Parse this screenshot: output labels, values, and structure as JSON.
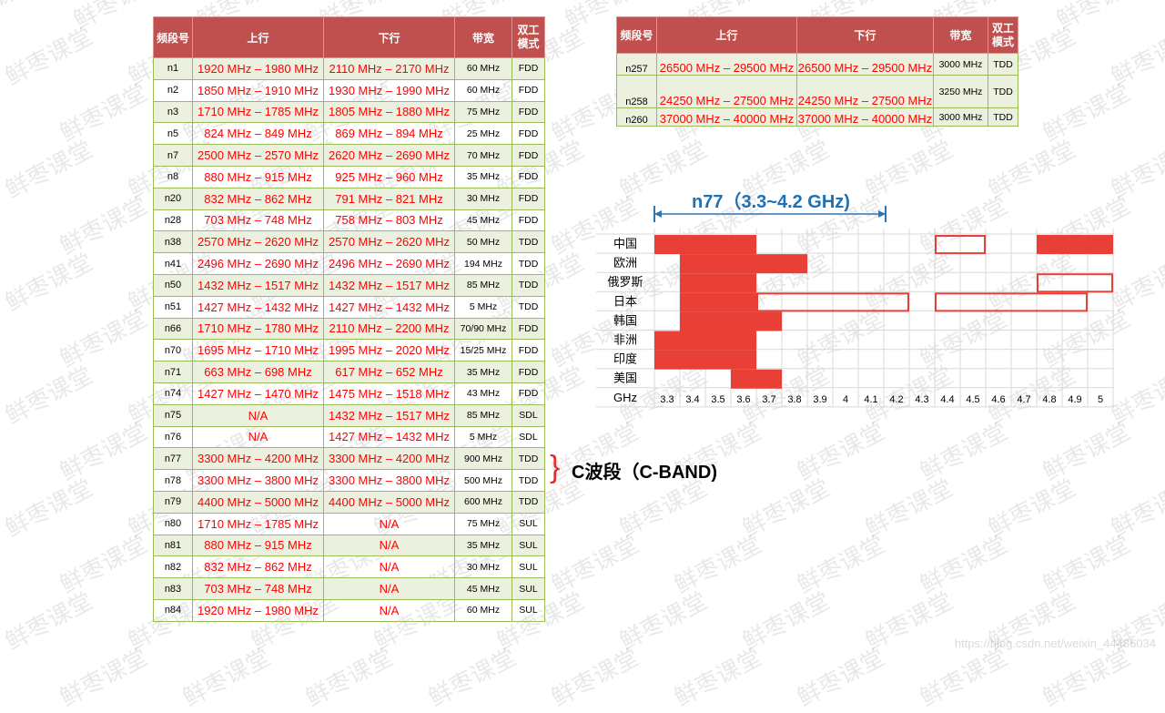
{
  "left_table": {
    "headers": [
      "频段号",
      "上行",
      "下行",
      "带宽",
      "双工模式"
    ],
    "rows": [
      [
        "n1",
        "1920 MHz – 1980 MHz",
        "2110 MHz – 2170 MHz",
        "60 MHz",
        "FDD"
      ],
      [
        "n2",
        "1850 MHz – 1910 MHz",
        "1930 MHz – 1990 MHz",
        "60 MHz",
        "FDD"
      ],
      [
        "n3",
        "1710 MHz – 1785 MHz",
        "1805 MHz – 1880 MHz",
        "75 MHz",
        "FDD"
      ],
      [
        "n5",
        "824 MHz – 849 MHz",
        "869 MHz – 894 MHz",
        "25 MHz",
        "FDD"
      ],
      [
        "n7",
        "2500 MHz – 2570 MHz",
        "2620 MHz – 2690 MHz",
        "70 MHz",
        "FDD"
      ],
      [
        "n8",
        "880 MHz – 915 MHz",
        "925 MHz – 960 MHz",
        "35 MHz",
        "FDD"
      ],
      [
        "n20",
        "832 MHz – 862 MHz",
        "791 MHz – 821 MHz",
        "30 MHz",
        "FDD"
      ],
      [
        "n28",
        "703 MHz – 748 MHz",
        "758 MHz – 803 MHz",
        "45 MHz",
        "FDD"
      ],
      [
        "n38",
        "2570 MHz – 2620 MHz",
        "2570 MHz – 2620 MHz",
        "50 MHz",
        "TDD"
      ],
      [
        "n41",
        "2496 MHz – 2690 MHz",
        "2496 MHz – 2690 MHz",
        "194 MHz",
        "TDD"
      ],
      [
        "n50",
        "1432 MHz – 1517 MHz",
        "1432 MHz – 1517 MHz",
        "85 MHz",
        "TDD"
      ],
      [
        "n51",
        "1427 MHz – 1432 MHz",
        "1427 MHz – 1432 MHz",
        "5 MHz",
        "TDD"
      ],
      [
        "n66",
        "1710 MHz – 1780 MHz",
        "2110 MHz – 2200 MHz",
        "70/90 MHz",
        "FDD"
      ],
      [
        "n70",
        "1695 MHz – 1710 MHz",
        "1995 MHz – 2020 MHz",
        "15/25 MHz",
        "FDD"
      ],
      [
        "n71",
        "663 MHz – 698 MHz",
        "617 MHz – 652 MHz",
        "35 MHz",
        "FDD"
      ],
      [
        "n74",
        "1427 MHz – 1470 MHz",
        "1475 MHz – 1518 MHz",
        "43 MHz",
        "FDD"
      ],
      [
        "n75",
        "N/A",
        "1432 MHz – 1517 MHz",
        "85 MHz",
        "SDL"
      ],
      [
        "n76",
        "N/A",
        "1427 MHz – 1432 MHz",
        "5 MHz",
        "SDL"
      ],
      [
        "n77",
        "3300 MHz – 4200 MHz",
        "3300 MHz – 4200 MHz",
        "900 MHz",
        "TDD"
      ],
      [
        "n78",
        "3300 MHz – 3800 MHz",
        "3300 MHz – 3800 MHz",
        "500 MHz",
        "TDD"
      ],
      [
        "n79",
        "4400 MHz – 5000 MHz",
        "4400 MHz – 5000 MHz",
        "600 MHz",
        "TDD"
      ],
      [
        "n80",
        "1710 MHz – 1785 MHz",
        "N/A",
        "75 MHz",
        "SUL"
      ],
      [
        "n81",
        "880 MHz – 915 MHz",
        "N/A",
        "35 MHz",
        "SUL"
      ],
      [
        "n82",
        "832 MHz – 862 MHz",
        "N/A",
        "30 MHz",
        "SUL"
      ],
      [
        "n83",
        "703 MHz – 748 MHz",
        "N/A",
        "45 MHz",
        "SUL"
      ],
      [
        "n84",
        "1920 MHz – 1980 MHz",
        "N/A",
        "60 MHz",
        "SUL"
      ]
    ]
  },
  "right_table": {
    "headers": [
      "频段号",
      "上行",
      "下行",
      "带宽",
      "双工模式"
    ],
    "rows": [
      [
        "n257",
        "26500 MHz – 29500 MHz",
        "26500 MHz – 29500 MHz",
        "3000 MHz",
        "TDD"
      ],
      [
        "n258",
        "24250 MHz – 27500 MHz",
        "24250 MHz – 27500 MHz",
        "3250 MHz",
        "TDD"
      ],
      [
        "n260",
        "37000 MHz – 40000 MHz",
        "37000 MHz – 40000 MHz",
        "3000 MHz",
        "TDD"
      ]
    ]
  },
  "annotation": {
    "cband": "C波段（C-BAND)",
    "n77": "n77（3.3~4.2 GHz)"
  },
  "spectrum_chart": {
    "axis_label": "GHz",
    "ticks": [
      "3.3",
      "3.4",
      "3.5",
      "3.6",
      "3.7",
      "3.8",
      "3.9",
      "4",
      "4.1",
      "4.2",
      "4.3",
      "4.4",
      "4.5",
      "4.6",
      "4.7",
      "4.8",
      "4.9",
      "5"
    ],
    "regions": [
      {
        "name": "中国",
        "filled": [
          [
            3.3,
            3.6
          ],
          [
            4.8,
            5
          ]
        ],
        "outlined": [
          [
            4.4,
            4.5
          ]
        ]
      },
      {
        "name": "欧洲",
        "filled": [
          [
            3.4,
            3.8
          ]
        ],
        "outlined": []
      },
      {
        "name": "俄罗斯",
        "filled": [
          [
            3.4,
            3.6
          ]
        ],
        "outlined": [
          [
            4.8,
            5
          ]
        ]
      },
      {
        "name": "日本",
        "filled": [
          [
            3.4,
            3.6
          ]
        ],
        "outlined": [
          [
            3.7,
            4.2
          ],
          [
            4.4,
            4.9
          ]
        ]
      },
      {
        "name": "韩国",
        "filled": [
          [
            3.4,
            3.7
          ]
        ],
        "outlined": []
      },
      {
        "name": "非洲",
        "filled": [
          [
            3.3,
            3.6
          ]
        ],
        "outlined": []
      },
      {
        "name": "印度",
        "filled": [
          [
            3.3,
            3.6
          ]
        ],
        "outlined": []
      },
      {
        "name": "美国",
        "filled": [
          [
            3.6,
            3.7
          ]
        ],
        "outlined": []
      }
    ],
    "fill_color": "#e84037",
    "arrow_color": "#2e75b6"
  },
  "watermark": "鲜枣课堂",
  "source_url": "https://blog.csdn.net/weixin_44486034"
}
